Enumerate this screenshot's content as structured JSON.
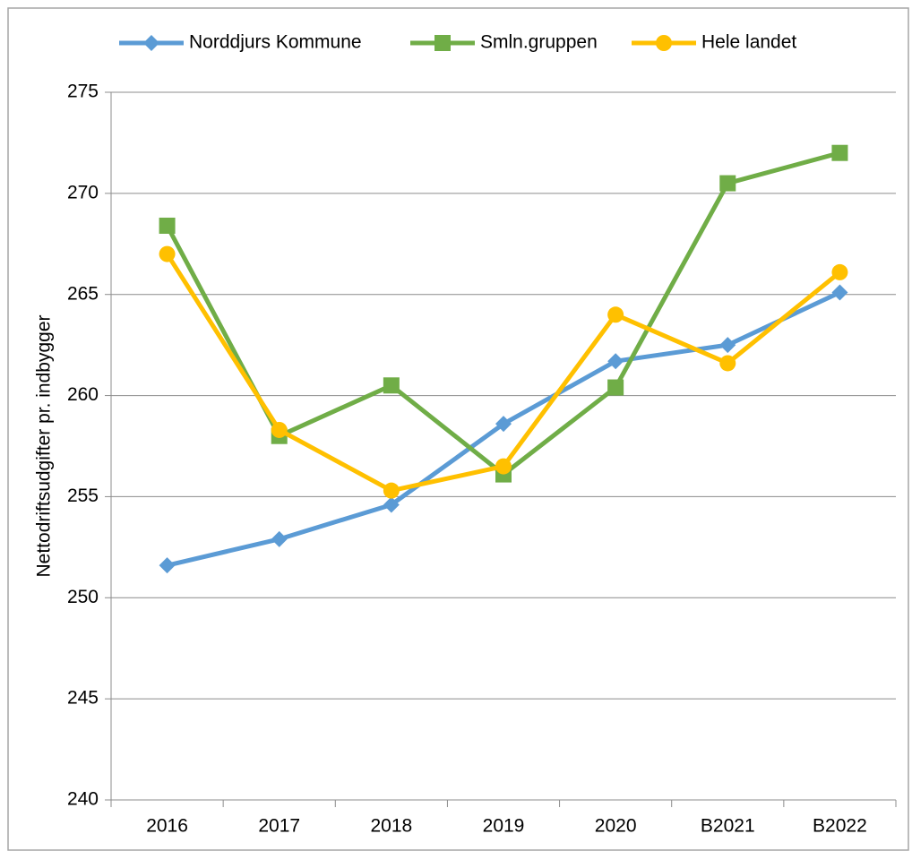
{
  "chart_data": {
    "type": "line",
    "y_axis_label": "Nettodriftsudgifter pr. indbygger",
    "categories": [
      "2016",
      "2017",
      "2018",
      "2019",
      "2020",
      "B2021",
      "B2022"
    ],
    "series": [
      {
        "name": "Norddjurs Kommune",
        "color": "#5b9bd5",
        "marker": "diamond",
        "values": [
          251.6,
          252.9,
          254.6,
          258.6,
          261.7,
          262.5,
          265.1
        ]
      },
      {
        "name": "Smln.gruppen",
        "color": "#70ad47",
        "marker": "square",
        "values": [
          268.4,
          258.0,
          260.5,
          256.1,
          260.4,
          270.5,
          272.0
        ]
      },
      {
        "name": "Hele landet",
        "color": "#ffc000",
        "marker": "circle",
        "values": [
          267.0,
          258.3,
          255.3,
          256.5,
          264.0,
          261.6,
          266.1
        ]
      }
    ],
    "ylim": [
      240,
      275
    ],
    "yticks": [
      240,
      245,
      250,
      255,
      260,
      265,
      270,
      275
    ],
    "grid": true,
    "legend": "top"
  }
}
